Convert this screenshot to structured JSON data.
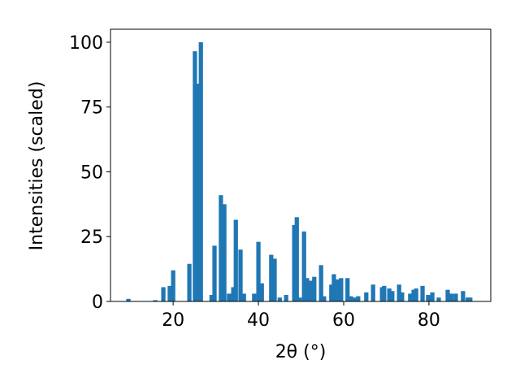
{
  "chart_data": {
    "type": "bar",
    "xlabel": "2θ (°)",
    "ylabel": "Intensities (scaled)",
    "color": "#1f77b4",
    "bar_width": 1.0,
    "x": [
      9.5,
      15.8,
      17.7,
      19.2,
      20.0,
      23.8,
      25.1,
      26.1,
      26.5,
      29.0,
      29.7,
      31.2,
      32.0,
      33.1,
      34.1,
      34.7,
      35.8,
      36.6,
      39.0,
      40.0,
      40.8,
      43.0,
      43.8,
      45.0,
      46.5,
      48.4,
      49.0,
      49.7,
      50.7,
      51.4,
      52.2,
      53.1,
      54.7,
      55.4,
      57.1,
      57.7,
      58.5,
      59.4,
      60.9,
      61.7,
      62.7,
      63.4,
      65.3,
      66.9,
      69.0,
      69.5,
      70.7,
      71.4,
      73.0,
      73.7,
      75.6,
      76.4,
      77.0,
      78.5,
      79.8,
      80.8,
      82.3,
      84.4,
      85.3,
      86.3,
      88.0,
      89.1,
      89.7
    ],
    "values": [
      1,
      0.5,
      5.5,
      6,
      12,
      14.5,
      96.5,
      84,
      100,
      2.5,
      21.5,
      41,
      37.5,
      3,
      5.5,
      31.5,
      20,
      3,
      3,
      23,
      7,
      18,
      16.5,
      1.5,
      2.5,
      29.5,
      32.5,
      1.5,
      27,
      9,
      8,
      9.5,
      14,
      2,
      6.5,
      10.5,
      8.5,
      9,
      9,
      2,
      1.5,
      2,
      3.5,
      6.5,
      5.5,
      6,
      5,
      4,
      6.5,
      3.5,
      3,
      4.5,
      5,
      6,
      2.5,
      3.5,
      1.5,
      4.5,
      3,
      3,
      4,
      1.5,
      1.5
    ],
    "xlim": [
      5.3,
      94.5
    ],
    "ylim": [
      0,
      105
    ],
    "xticks": [
      20,
      40,
      60,
      80
    ],
    "yticks": [
      0,
      25,
      50,
      75,
      100
    ]
  }
}
